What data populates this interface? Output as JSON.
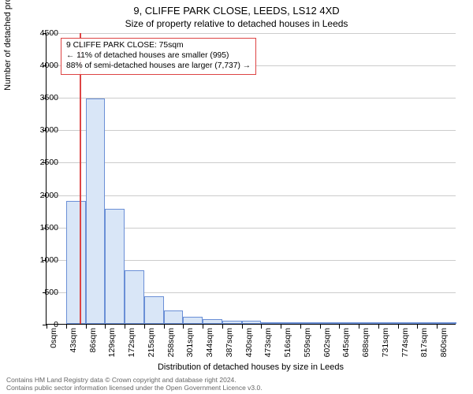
{
  "title": "9, CLIFFE PARK CLOSE, LEEDS, LS12 4XD",
  "subtitle": "Size of property relative to detached houses in Leeds",
  "ylabel": "Number of detached properties",
  "xlabel": "Distribution of detached houses by size in Leeds",
  "chart": {
    "type": "histogram",
    "background_color": "#ffffff",
    "grid_color": "#cccccc",
    "axis_color": "#000000",
    "bar_fill": "#d9e6f7",
    "bar_stroke": "#6a8fd6",
    "bar_stroke_width": 1,
    "vline_color": "#dd4444",
    "vline_x": 75,
    "ylim": [
      0,
      4500
    ],
    "ytick_step": 500,
    "yticks": [
      "0",
      "500",
      "1000",
      "1500",
      "2000",
      "2500",
      "3000",
      "3500",
      "4000",
      "4500"
    ],
    "bin_width": 43,
    "xmin": 0,
    "xmax": 903,
    "xticks": [
      "0sqm",
      "43sqm",
      "86sqm",
      "129sqm",
      "172sqm",
      "215sqm",
      "258sqm",
      "301sqm",
      "344sqm",
      "387sqm",
      "430sqm",
      "473sqm",
      "516sqm",
      "559sqm",
      "602sqm",
      "645sqm",
      "688sqm",
      "731sqm",
      "774sqm",
      "817sqm",
      "860sqm"
    ],
    "bins_x": [
      0,
      43,
      86,
      129,
      172,
      215,
      258,
      301,
      344,
      387,
      430,
      473,
      516,
      559,
      602,
      645,
      688,
      731,
      774,
      817,
      860
    ],
    "values": [
      0,
      1900,
      3480,
      1770,
      830,
      425,
      210,
      105,
      75,
      50,
      48,
      30,
      12,
      8,
      5,
      4,
      3,
      2,
      2,
      1,
      1
    ],
    "title_fontsize": 13,
    "subtitle_fontsize": 12,
    "label_fontsize": 11,
    "tick_fontsize": 10.5
  },
  "annotation": {
    "border_color": "#dd4444",
    "line1": "9 CLIFFE PARK CLOSE: 75sqm",
    "line2": "← 11% of detached houses are smaller (995)",
    "line3": "88% of semi-detached houses are larger (7,737) →"
  },
  "footer": {
    "line1": "Contains HM Land Registry data © Crown copyright and database right 2024.",
    "line2": "Contains public sector information licensed under the Open Government Licence v3.0.",
    "color": "#666666"
  }
}
